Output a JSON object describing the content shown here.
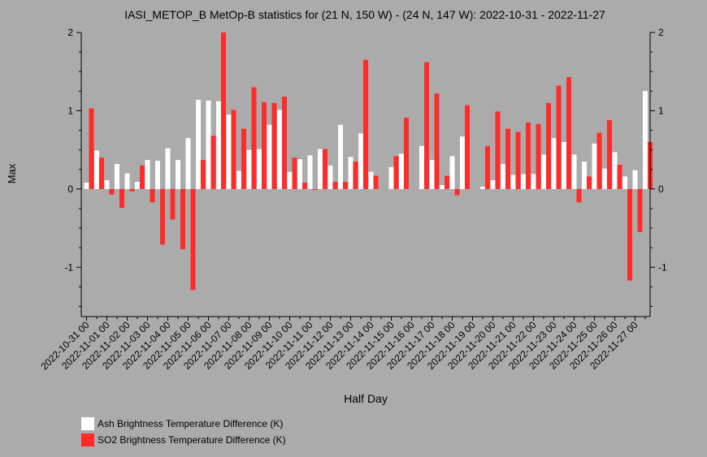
{
  "chart_data": {
    "type": "bar",
    "title": "IASI_METOP_B MetOp-B statistics for (21 N, 150 W) - (24 N, 147 W): 2022-10-31 - 2022-11-27",
    "xlabel": "Half Day",
    "ylabel": "Max",
    "ylim": [
      -1.63,
      2.0
    ],
    "yticks": [
      -1,
      0,
      1,
      2
    ],
    "grid": false,
    "legend_position": "bottom-left",
    "categories": [
      "2022-10-31 00",
      "2022-10-31 12",
      "2022-11-01 00",
      "2022-11-01 12",
      "2022-11-02 00",
      "2022-11-02 12",
      "2022-11-03 00",
      "2022-11-03 12",
      "2022-11-04 00",
      "2022-11-04 12",
      "2022-11-05 00",
      "2022-11-05 12",
      "2022-11-06 00",
      "2022-11-06 12",
      "2022-11-07 00",
      "2022-11-07 12",
      "2022-11-08 00",
      "2022-11-08 12",
      "2022-11-09 00",
      "2022-11-09 12",
      "2022-11-10 00",
      "2022-11-10 12",
      "2022-11-11 00",
      "2022-11-11 12",
      "2022-11-12 00",
      "2022-11-12 12",
      "2022-11-13 00",
      "2022-11-13 12",
      "2022-11-14 00",
      "2022-11-14 12",
      "2022-11-15 00",
      "2022-11-15 12",
      "2022-11-16 00",
      "2022-11-16 12",
      "2022-11-17 00",
      "2022-11-17 12",
      "2022-11-18 00",
      "2022-11-18 12",
      "2022-11-19 00",
      "2022-11-19 12",
      "2022-11-20 00",
      "2022-11-20 12",
      "2022-11-21 00",
      "2022-11-21 12",
      "2022-11-22 00",
      "2022-11-22 12",
      "2022-11-23 00",
      "2022-11-23 12",
      "2022-11-24 00",
      "2022-11-24 12",
      "2022-11-25 00",
      "2022-11-25 12",
      "2022-11-26 00",
      "2022-11-26 12",
      "2022-11-27 00",
      "2022-11-27 12"
    ],
    "tick_labels": [
      "2022-10-31 00",
      "2022-11-01 00",
      "2022-11-02 00",
      "2022-11-03 00",
      "2022-11-04 00",
      "2022-11-05 00",
      "2022-11-06 00",
      "2022-11-07 00",
      "2022-11-08 00",
      "2022-11-09 00",
      "2022-11-10 00",
      "2022-11-11 00",
      "2022-11-12 00",
      "2022-11-13 00",
      "2022-11-14 00",
      "2022-11-15 00",
      "2022-11-16 00",
      "2022-11-17 00",
      "2022-11-18 00",
      "2022-11-19 00",
      "2022-11-20 00",
      "2022-11-21 00",
      "2022-11-22 00",
      "2022-11-23 00",
      "2022-11-24 00",
      "2022-11-25 00",
      "2022-11-26 00",
      "2022-11-27 00"
    ],
    "series": [
      {
        "name": "Ash Brightness Temperature Difference (K)",
        "color": "#ffffff",
        "values": [
          0.08,
          0.49,
          0.11,
          0.32,
          0.2,
          0.09,
          0.37,
          0.36,
          0.52,
          0.37,
          0.65,
          1.14,
          1.13,
          1.12,
          0.95,
          0.23,
          0.5,
          0.51,
          0.82,
          1.01,
          0.22,
          0.38,
          0.43,
          0.51,
          0.3,
          0.82,
          0.41,
          0.71,
          0.22,
          null,
          0.28,
          0.45,
          null,
          0.55,
          0.37,
          0.05,
          0.42,
          0.67,
          null,
          0.03,
          0.11,
          0.32,
          0.18,
          0.19,
          0.19,
          0.44,
          0.65,
          0.6,
          0.44,
          0.35,
          0.58,
          0.26,
          0.47,
          0.16,
          0.24,
          1.25
        ]
      },
      {
        "name": "SO2 Brightness Temperature Difference (K)",
        "color": "#ff2a2a",
        "values": [
          1.03,
          0.4,
          -0.07,
          -0.24,
          -0.03,
          0.3,
          -0.17,
          -0.71,
          -0.39,
          -0.77,
          -1.29,
          0.37,
          0.68,
          2.0,
          1.01,
          0.77,
          1.3,
          1.11,
          1.1,
          1.18,
          0.4,
          0.08,
          -0.01,
          0.51,
          0.09,
          0.09,
          0.35,
          1.65,
          0.17,
          null,
          0.42,
          0.91,
          null,
          1.62,
          1.22,
          0.17,
          -0.08,
          1.07,
          null,
          0.55,
          0.99,
          0.77,
          0.73,
          0.85,
          0.83,
          1.1,
          1.32,
          1.43,
          -0.17,
          0.16,
          0.72,
          0.88,
          0.31,
          -1.17,
          -0.55,
          0.6
        ]
      }
    ]
  }
}
